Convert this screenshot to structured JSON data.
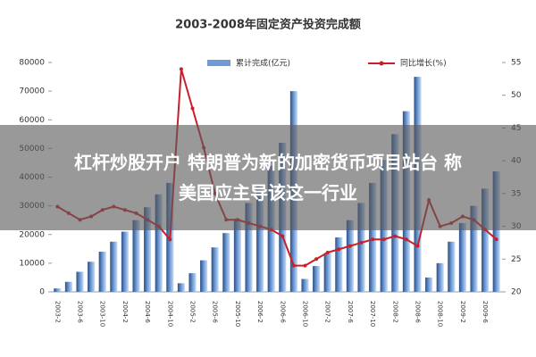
{
  "chart_data": {
    "type": "bar-line",
    "title": "2003-2008年固定资产投资完成额",
    "categories": [
      "2003-2",
      null,
      "2003-6",
      null,
      "2003-10",
      null,
      "2004-2",
      null,
      "2004-6",
      null,
      "2004-10",
      null,
      "2005-2",
      null,
      "2005-6",
      null,
      "2005-10",
      null,
      "2006-2",
      null,
      "2006-6",
      null,
      "2006-10",
      null,
      "2007-2",
      null,
      "2007-6",
      null,
      "2007-10",
      null,
      "2008-2",
      null,
      "2008-6",
      null,
      "2008-10",
      null,
      "2009-2",
      null,
      "2009-6",
      null
    ],
    "series": [
      {
        "name": "累计完成(亿元)",
        "color": "#6f9bd6",
        "values": [
          1200,
          3500,
          7000,
          10500,
          14000,
          17500,
          21000,
          25000,
          29500,
          34000,
          38000,
          3000,
          6500,
          11000,
          15500,
          20500,
          25500,
          31000,
          37000,
          44000,
          52000,
          70000,
          4500,
          9000,
          13500,
          19000,
          25000,
          31000,
          38000,
          46000,
          55000,
          63000,
          75000,
          5000,
          10000,
          17500,
          24000,
          30000,
          36000,
          42000
        ]
      },
      {
        "name": "同比增长(%)",
        "color": "#c8202a",
        "axis": "y2",
        "values": [
          33,
          32,
          31,
          31.5,
          32.5,
          33,
          32.5,
          32,
          31,
          30,
          28,
          54,
          48,
          42,
          35,
          31,
          31,
          30.5,
          30,
          29.5,
          28.5,
          24,
          24,
          25,
          26,
          26.5,
          27,
          27.5,
          28,
          28,
          28.5,
          28,
          27,
          34,
          30,
          30.5,
          31.5,
          31,
          29.5,
          28
        ]
      }
    ],
    "ylim": [
      0,
      80000
    ],
    "yticks": [
      0,
      10000,
      20000,
      30000,
      40000,
      50000,
      60000,
      70000,
      80000
    ],
    "y2lim": [
      20,
      55
    ],
    "y2ticks": [
      20,
      25,
      30,
      35,
      40,
      45,
      50,
      55
    ]
  },
  "overlay": {
    "lines": [
      "杠杆炒股开户 特朗普为新的加密货币项目站台 称",
      "美国应主导该这一行业"
    ]
  }
}
